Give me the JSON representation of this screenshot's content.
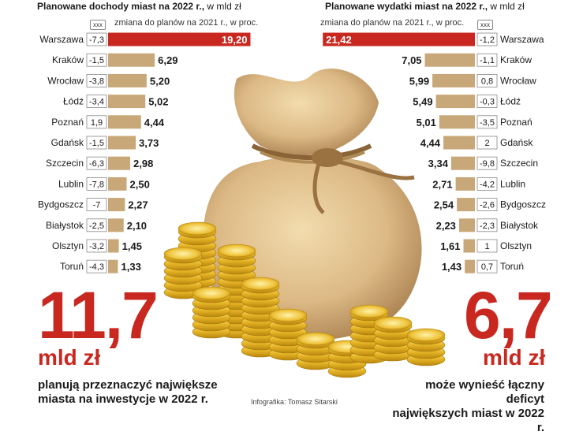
{
  "left_header": {
    "title": "Planowane dochody miast na 2022 r.,",
    "unit": " w mld zł"
  },
  "right_header": {
    "title": "Planowane wydatki miast na 2022 r.,",
    "unit": " w mld zł"
  },
  "legend": {
    "box": "xxx",
    "text": "zmiana do planów na 2021 r., w proc."
  },
  "colors": {
    "bar": "#c8a878",
    "highlight": "#c8281f",
    "accent_red": "#c8281f"
  },
  "left_summary": {
    "value": "11,7",
    "unit": "mld zł",
    "line1": "planują przeznaczyć największe",
    "line2": "miasta na inwestycje w 2022 r."
  },
  "right_summary": {
    "value": "6,7",
    "unit": "mld zł",
    "line1": "może wynieść łączny deficyt",
    "line2": "największych miast w 2022 r."
  },
  "credit": "Infografika: Tomasz Sitarski",
  "chart_data": [
    {
      "type": "bar",
      "title": "Planowane dochody miast na 2022 r., w mld zł",
      "categories": [
        "Warszawa",
        "Kraków",
        "Wrocław",
        "Łódź",
        "Poznań",
        "Gdańsk",
        "Szczecin",
        "Lublin",
        "Bydgoszcz",
        "Białystok",
        "Olsztyn",
        "Toruń"
      ],
      "values": [
        19.2,
        6.29,
        5.2,
        5.02,
        4.44,
        3.73,
        2.98,
        2.5,
        2.27,
        2.1,
        1.45,
        1.33
      ],
      "value_labels": [
        "19,20",
        "6,29",
        "5,20",
        "5,02",
        "4,44",
        "3,73",
        "2,98",
        "2,50",
        "2,27",
        "2,10",
        "1,45",
        "1,33"
      ],
      "change_labels": [
        "-7,3",
        "-1,5",
        "-3,8",
        "-3,4",
        "1,9",
        "-1,5",
        "-6,3",
        "-7,8",
        "-7",
        "-2,5",
        "-3,2",
        "-4,3"
      ],
      "change_values": [
        -7.3,
        -1.5,
        -3.8,
        -3.4,
        1.9,
        -1.5,
        -6.3,
        -7.8,
        -7,
        -2.5,
        -3.2,
        -4.3
      ]
    },
    {
      "type": "bar",
      "title": "Planowane wydatki miast na 2022 r., w mld zł",
      "categories": [
        "Warszawa",
        "Kraków",
        "Wrocław",
        "Łódź",
        "Poznań",
        "Gdańsk",
        "Szczecin",
        "Lublin",
        "Bydgoszcz",
        "Białystok",
        "Olsztyn",
        "Toruń"
      ],
      "values": [
        21.42,
        7.05,
        5.99,
        5.49,
        5.01,
        4.44,
        3.34,
        2.71,
        2.54,
        2.23,
        1.61,
        1.43
      ],
      "value_labels": [
        "21,42",
        "7,05",
        "5,99",
        "5,49",
        "5,01",
        "4,44",
        "3,34",
        "2,71",
        "2,54",
        "2,23",
        "1,61",
        "1,43"
      ],
      "change_labels": [
        "-1,2",
        "-1,1",
        "0,8",
        "-0,3",
        "-3,5",
        "2",
        "-9,8",
        "-4,2",
        "-2,6",
        "-2,3",
        "1",
        "0,7"
      ],
      "change_values": [
        -1.2,
        -1.1,
        0.8,
        -0.3,
        -3.5,
        2,
        -9.8,
        -4.2,
        -2.6,
        -2.3,
        1,
        0.7
      ]
    }
  ]
}
